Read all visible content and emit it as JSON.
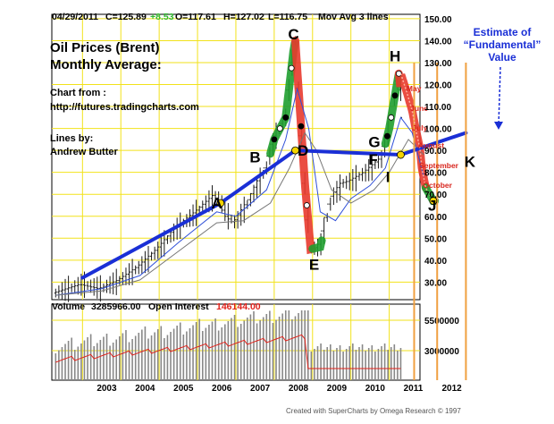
{
  "header": {
    "date": "04/29/2011",
    "close": "C=125.89",
    "change": "+8.53",
    "open": "O=117.61",
    "high": "H=127.02",
    "low": "L=116.75",
    "study": "Mov Avg 3 lines"
  },
  "title": {
    "line1": "Oil Prices (Brent)",
    "line2": "Monthly Average:"
  },
  "source": {
    "line1": "Chart from :",
    "line2": "http://futures.tradingcharts.com"
  },
  "author": {
    "line1": "Lines by:",
    "line2": "Andrew Butter"
  },
  "estimate_note": {
    "line1": "Estimate of",
    "line2": "“Fundamental”",
    "line3": "Value"
  },
  "volume_header": {
    "volume_label": "Volume",
    "volume_value": "3285966.00",
    "oi_label": "Open Interest",
    "oi_value": "146144.00"
  },
  "footer": "Created with SuperCharts by Omega Research © 1997",
  "colors": {
    "trend_line": "#1a2fd6",
    "up_bar": "#1f9e2f",
    "down_bar": "#e83a2e",
    "grid": "#f2e21a",
    "marker": "#f4d400",
    "month_label": "#d8261e",
    "estimate_text": "#1a2fd6",
    "change": "#2fb82f",
    "open_interest": "#e0221b"
  },
  "chart_data": {
    "type": "line",
    "y_ticks": [
      "150.00",
      "140.00",
      "130.00",
      "120.00",
      "110.00",
      "100.00",
      "90.00",
      "80.00",
      "70.00",
      "60.00",
      "50.00",
      "40.00",
      "30.00"
    ],
    "x_ticks": [
      "2003",
      "2004",
      "2005",
      "2006",
      "2007",
      "2008",
      "2009",
      "2010",
      "2011",
      "2012"
    ],
    "volume_ticks": [
      "5500000",
      "3000000"
    ],
    "ylim": [
      22,
      152
    ],
    "xlim": [
      2002.2,
      2013.2
    ],
    "series": [
      {
        "values": [
          [
            2002.3,
            25
          ],
          [
            2003.0,
            29
          ],
          [
            2003.5,
            27
          ],
          [
            2004.0,
            31
          ],
          [
            2004.5,
            37
          ],
          [
            2005.0,
            45
          ],
          [
            2005.5,
            55
          ],
          [
            2006.0,
            62
          ],
          [
            2006.5,
            70
          ],
          [
            2006.8,
            60
          ],
          [
            2007.0,
            57
          ],
          [
            2007.4,
            68
          ],
          [
            2007.8,
            82
          ],
          [
            2008.0,
            95
          ],
          [
            2008.3,
            105
          ],
          [
            2008.5,
            135
          ],
          [
            2008.55,
            140
          ],
          [
            2008.8,
            75
          ],
          [
            2008.95,
            45
          ],
          [
            2009.2,
            46
          ],
          [
            2009.5,
            68
          ],
          [
            2009.8,
            75
          ],
          [
            2010.0,
            76
          ],
          [
            2010.4,
            80
          ],
          [
            2010.8,
            86
          ],
          [
            2011.0,
            100
          ],
          [
            2011.25,
            125
          ],
          [
            2011.45,
            95
          ],
          [
            2011.6,
            80
          ],
          [
            2011.75,
            68
          ],
          [
            2011.9,
            62
          ],
          [
            2012.2,
            72
          ]
        ]
      },
      {
        "values": [
          [
            2002.3,
            24
          ],
          [
            2003.5,
            27
          ],
          [
            2004.5,
            33
          ],
          [
            2005.5,
            48
          ],
          [
            2006.5,
            62
          ],
          [
            2007.0,
            60
          ],
          [
            2007.8,
            72
          ],
          [
            2008.3,
            95
          ],
          [
            2008.6,
            118
          ],
          [
            2008.9,
            100
          ],
          [
            2009.2,
            62
          ],
          [
            2009.6,
            58
          ],
          [
            2010.0,
            68
          ],
          [
            2010.5,
            74
          ],
          [
            2010.9,
            82
          ],
          [
            2011.3,
            105
          ],
          [
            2011.6,
            98
          ],
          [
            2011.9,
            78
          ]
        ]
      },
      {
        "values": [
          [
            2002.3,
            24
          ],
          [
            2003.5,
            26
          ],
          [
            2004.5,
            31
          ],
          [
            2005.5,
            44
          ],
          [
            2006.5,
            57
          ],
          [
            2007.2,
            58
          ],
          [
            2007.9,
            66
          ],
          [
            2008.4,
            82
          ],
          [
            2008.8,
            98
          ],
          [
            2009.1,
            90
          ],
          [
            2009.5,
            72
          ],
          [
            2010.0,
            66
          ],
          [
            2010.6,
            72
          ],
          [
            2011.0,
            80
          ],
          [
            2011.5,
            95
          ],
          [
            2011.9,
            88
          ]
        ]
      }
    ],
    "fundamental_line": [
      [
        2003.0,
        32
      ],
      [
        2006.6,
        66
      ],
      [
        2008.55,
        90
      ],
      [
        2011.3,
        88
      ],
      [
        2013.0,
        98
      ]
    ],
    "point_labels": [
      {
        "name": "A",
        "x": 2006.5,
        "y": 66
      },
      {
        "name": "B",
        "x": 2007.5,
        "y": 87
      },
      {
        "name": "C",
        "x": 2008.5,
        "y": 143
      },
      {
        "name": "D",
        "x": 2008.75,
        "y": 90
      },
      {
        "name": "E",
        "x": 2009.05,
        "y": 38
      },
      {
        "name": "F",
        "x": 2010.6,
        "y": 86
      },
      {
        "name": "G",
        "x": 2010.6,
        "y": 94
      },
      {
        "name": "H",
        "x": 2011.15,
        "y": 133
      },
      {
        "name": "I",
        "x": 2011.05,
        "y": 78
      },
      {
        "name": "J",
        "x": 2012.15,
        "y": 65
      },
      {
        "name": "K",
        "x": 2013.1,
        "y": 85
      }
    ],
    "month_labels": [
      {
        "label": "May",
        "x": 2011.45,
        "y": 117
      },
      {
        "label": "June",
        "x": 2011.55,
        "y": 108
      },
      {
        "label": "July",
        "x": 2011.6,
        "y": 99
      },
      {
        "label": "August",
        "x": 2011.75,
        "y": 91
      },
      {
        "label": "September",
        "x": 2011.78,
        "y": 82
      },
      {
        "label": "October",
        "x": 2011.88,
        "y": 73
      }
    ],
    "estimate_projection": [
      [
        2011.3,
        125
      ],
      [
        2011.45,
        117
      ],
      [
        2011.6,
        108
      ],
      [
        2011.7,
        99
      ],
      [
        2011.8,
        91
      ],
      [
        2011.85,
        82
      ],
      [
        2011.95,
        73
      ],
      [
        2012.15,
        67
      ]
    ]
  }
}
